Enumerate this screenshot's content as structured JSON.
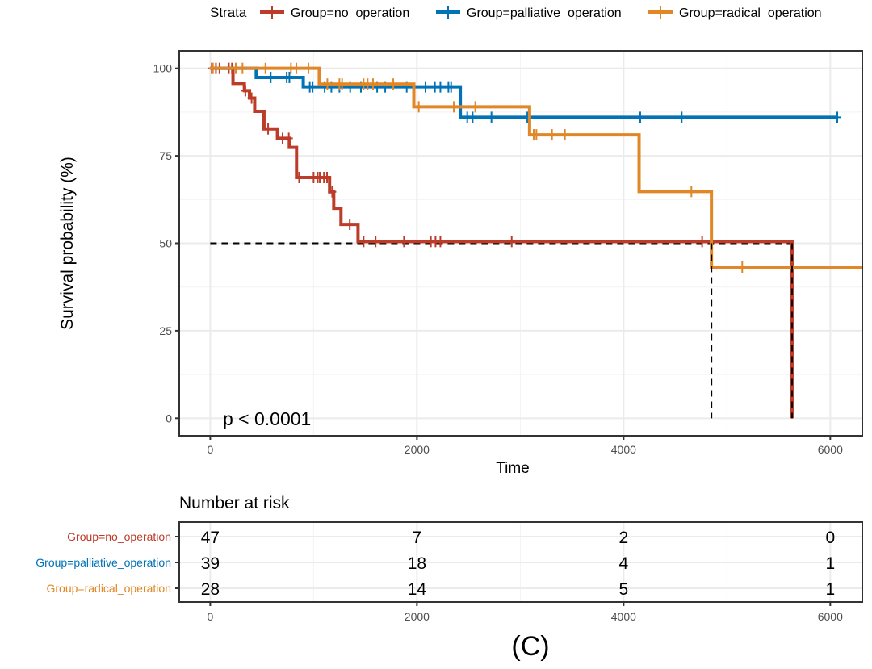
{
  "chart_data": {
    "type": "line",
    "subtype": "kaplan-meier",
    "xlabel": "Time",
    "ylabel": "Survival probability (%)",
    "xlim": [
      -300,
      6310
    ],
    "ylim": [
      -5,
      105
    ],
    "xticks": [
      0,
      2000,
      4000,
      6000
    ],
    "yticks": [
      0,
      25,
      50,
      75,
      100
    ],
    "grid": true,
    "legend": {
      "title": "Strata",
      "placement": "top"
    },
    "annotation": "p < 0.0001",
    "median_line": 50,
    "median_times": [
      4850,
      5630
    ],
    "series": [
      {
        "name": "Group=no_operation",
        "color": "#BC3C29",
        "steps": [
          [
            0,
            100
          ],
          [
            220,
            95.7
          ],
          [
            330,
            93.6
          ],
          [
            380,
            91.5
          ],
          [
            430,
            87.7
          ],
          [
            520,
            82.7
          ],
          [
            650,
            80
          ],
          [
            765,
            77.4
          ],
          [
            835,
            68.8
          ],
          [
            1155,
            64.7
          ],
          [
            1195,
            60
          ],
          [
            1265,
            55.4
          ],
          [
            1430,
            50.5
          ],
          [
            5630,
            0
          ]
        ],
        "end": 5630,
        "censored": [
          15,
          55,
          90,
          180,
          210,
          340,
          400,
          560,
          700,
          760,
          860,
          1000,
          1040,
          1060,
          1100,
          1130,
          1180,
          1350,
          1484,
          1600,
          1875,
          2135,
          2180,
          2227,
          2917,
          4760
        ]
      },
      {
        "name": "Group=palliative_operation",
        "color": "#0072B5",
        "steps": [
          [
            0,
            100
          ],
          [
            445,
            97.4
          ],
          [
            900,
            94.7
          ],
          [
            2420,
            86
          ]
        ],
        "end": 6068,
        "censored": [
          585,
          740,
          766,
          963,
          990,
          1107,
          1172,
          1250,
          1354,
          1458,
          1615,
          1693,
          1901,
          2083,
          2174,
          2227,
          2305,
          2331,
          2487,
          2539,
          2721,
          3068,
          4161,
          4562,
          6068
        ]
      },
      {
        "name": "Group=radical_operation",
        "color": "#E18727",
        "steps": [
          [
            0,
            100
          ],
          [
            1055,
            95.5
          ],
          [
            1970,
            89
          ],
          [
            3090,
            81
          ],
          [
            4150,
            64.8
          ],
          [
            4850,
            43.2
          ]
        ],
        "end": 6310,
        "censored": [
          26,
          247,
          312,
          534,
          781,
          833,
          950,
          1133,
          1250,
          1276,
          1484,
          1523,
          1575,
          1771,
          2018,
          2357,
          2565,
          3130,
          3156,
          3307,
          3432,
          4656,
          5148
        ]
      }
    ],
    "risk_table": {
      "title": "Number at risk",
      "times": [
        0,
        2000,
        4000,
        6000
      ],
      "rows": [
        {
          "label": "Group=no_operation",
          "color": "#BC3C29",
          "values": [
            47,
            7,
            2,
            0
          ]
        },
        {
          "label": "Group=palliative_operation",
          "color": "#0072B5",
          "values": [
            39,
            18,
            4,
            1
          ]
        },
        {
          "label": "Group=radical_operation",
          "color": "#E18727",
          "values": [
            28,
            14,
            5,
            1
          ]
        }
      ]
    },
    "panel_label": "(C)"
  }
}
